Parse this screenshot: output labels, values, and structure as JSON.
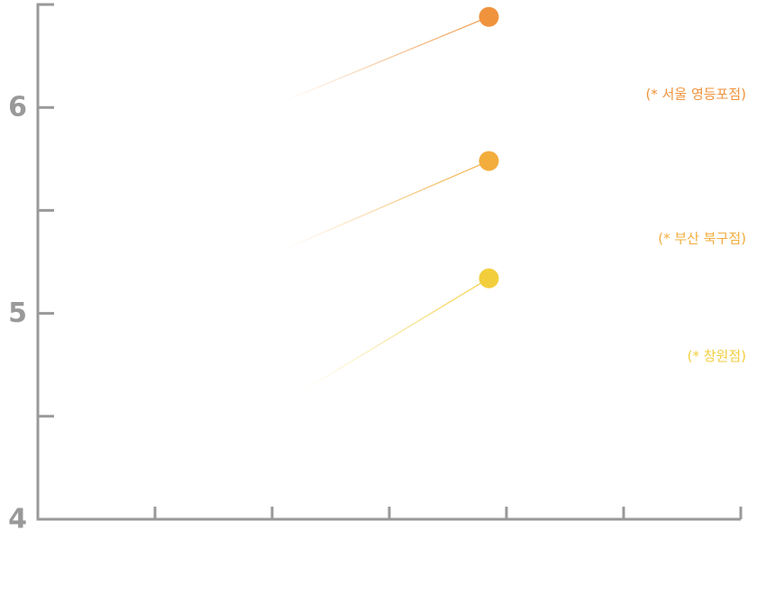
{
  "chart_data": {
    "type": "line",
    "title": "",
    "xlabel": "",
    "ylabel": "",
    "x_ticks": [
      0,
      1,
      2,
      3,
      4,
      5,
      6
    ],
    "x_tick_labels": [
      "",
      "",
      "",
      "",
      "",
      "",
      ""
    ],
    "xlim": [
      0,
      6
    ],
    "ylim": [
      4,
      6.5
    ],
    "y_major_ticks": [
      4,
      5,
      6
    ],
    "y_minor_ticks": [
      4.5,
      5.5
    ],
    "y_tick_labels": [
      "4",
      "5",
      "6"
    ],
    "grid": false,
    "axis_color": "#999999",
    "series": [
      {
        "name": "(* 서울 영등포점)",
        "color": "#F0933D",
        "x": [
          2.1,
          3.85
        ],
        "y": [
          6.03,
          6.44
        ],
        "label_position": "right"
      },
      {
        "name": "(* 부산 북구점)",
        "color": "#F2AD3D",
        "x": [
          2.1,
          3.85
        ],
        "y": [
          5.31,
          5.74
        ],
        "label_position": "right"
      },
      {
        "name": "(* 창원점)",
        "color": "#F2CE3D",
        "x": [
          2.25,
          3.85
        ],
        "y": [
          4.62,
          5.17
        ],
        "label_position": "right"
      }
    ]
  }
}
